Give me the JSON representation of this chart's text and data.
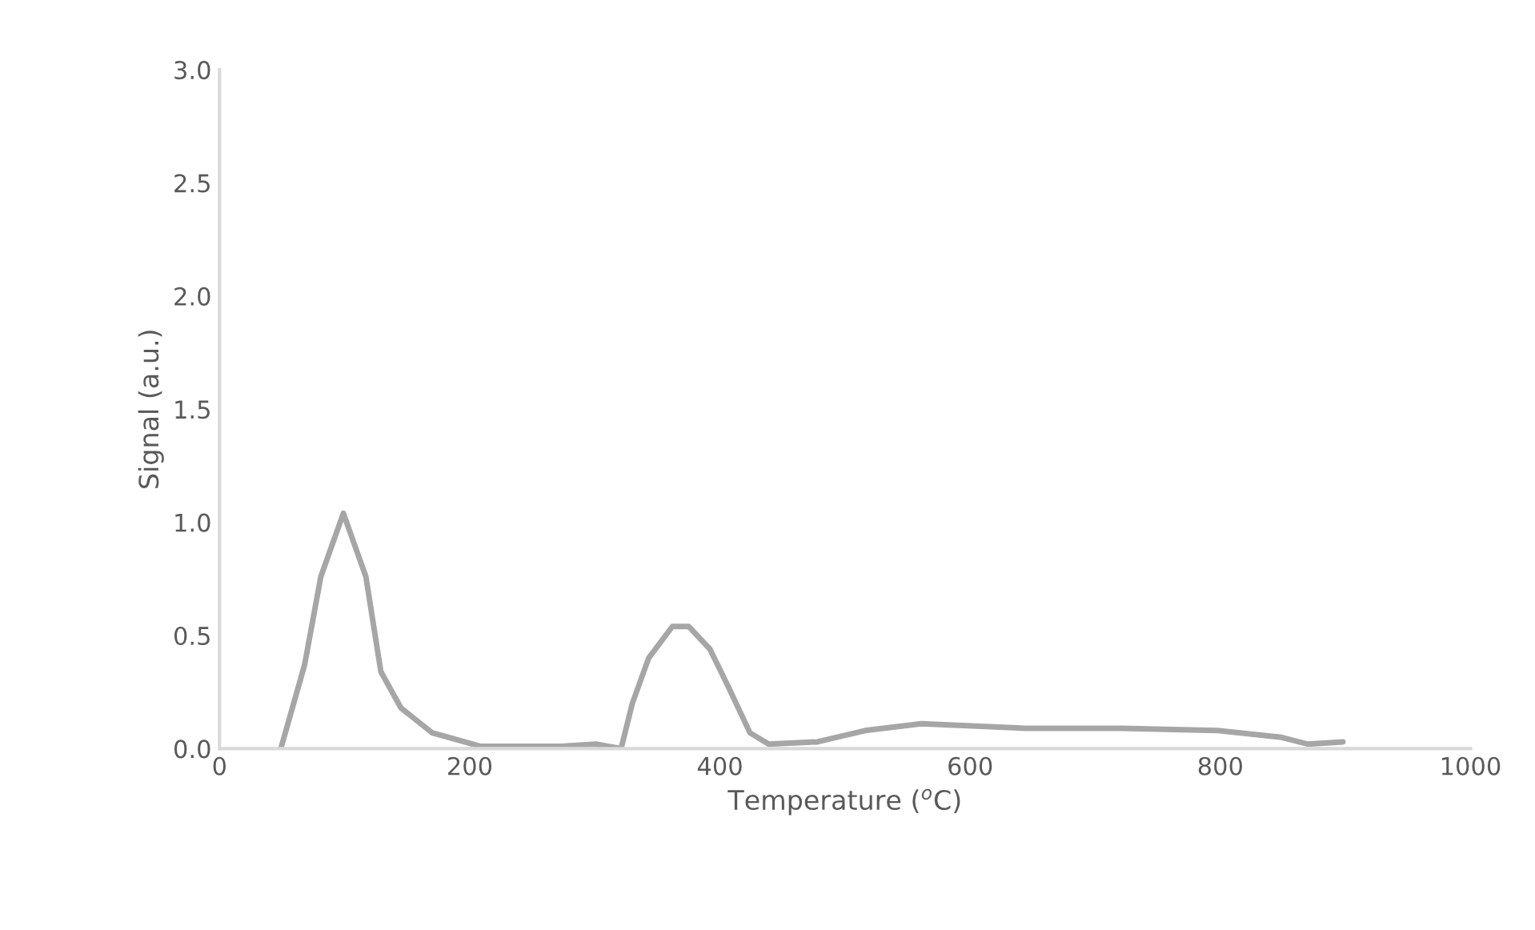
{
  "chart_data": {
    "type": "line",
    "xlabel": "Temperature ($^{o}$C)",
    "ylabel": "Signal (a.u.)",
    "xlim": [
      0,
      1000
    ],
    "xticks": [
      0,
      200,
      400,
      600,
      800,
      1000
    ],
    "ylim": [
      0,
      3.0
    ],
    "yticks": [
      {
        "value": 0,
        "label": "0.0"
      },
      {
        "value": 0.5,
        "label": "0.5"
      },
      {
        "value": 1.0,
        "label": "1.0"
      },
      {
        "value": 1.5,
        "label": "1.5"
      },
      {
        "value": 2.0,
        "label": "2.0"
      },
      {
        "value": 2.5,
        "label": "2.5"
      },
      {
        "value": 3.0,
        "label": "3.0"
      }
    ],
    "grid": false,
    "legend": false,
    "marker": "none",
    "line_style": "solid",
    "series": [
      {
        "color": "#a6a6a6",
        "x": [
          49,
          68,
          81,
          99,
          117,
          129,
          145,
          170,
          209,
          273,
          301,
          321,
          330,
          343,
          362,
          375,
          392,
          407,
          424,
          439,
          478,
          516,
          561,
          644,
          721,
          798,
          849,
          870,
          898
        ],
        "values": [
          0,
          0.37,
          0.76,
          1.04,
          0.76,
          0.34,
          0.18,
          0.07,
          0.01,
          0.01,
          0.02,
          0.0,
          0.2,
          0.4,
          0.54,
          0.54,
          0.44,
          0.27,
          0.07,
          0.02,
          0.03,
          0.08,
          0.11,
          0.09,
          0.09,
          0.08,
          0.05,
          0.02,
          0.03
        ]
      }
    ]
  }
}
